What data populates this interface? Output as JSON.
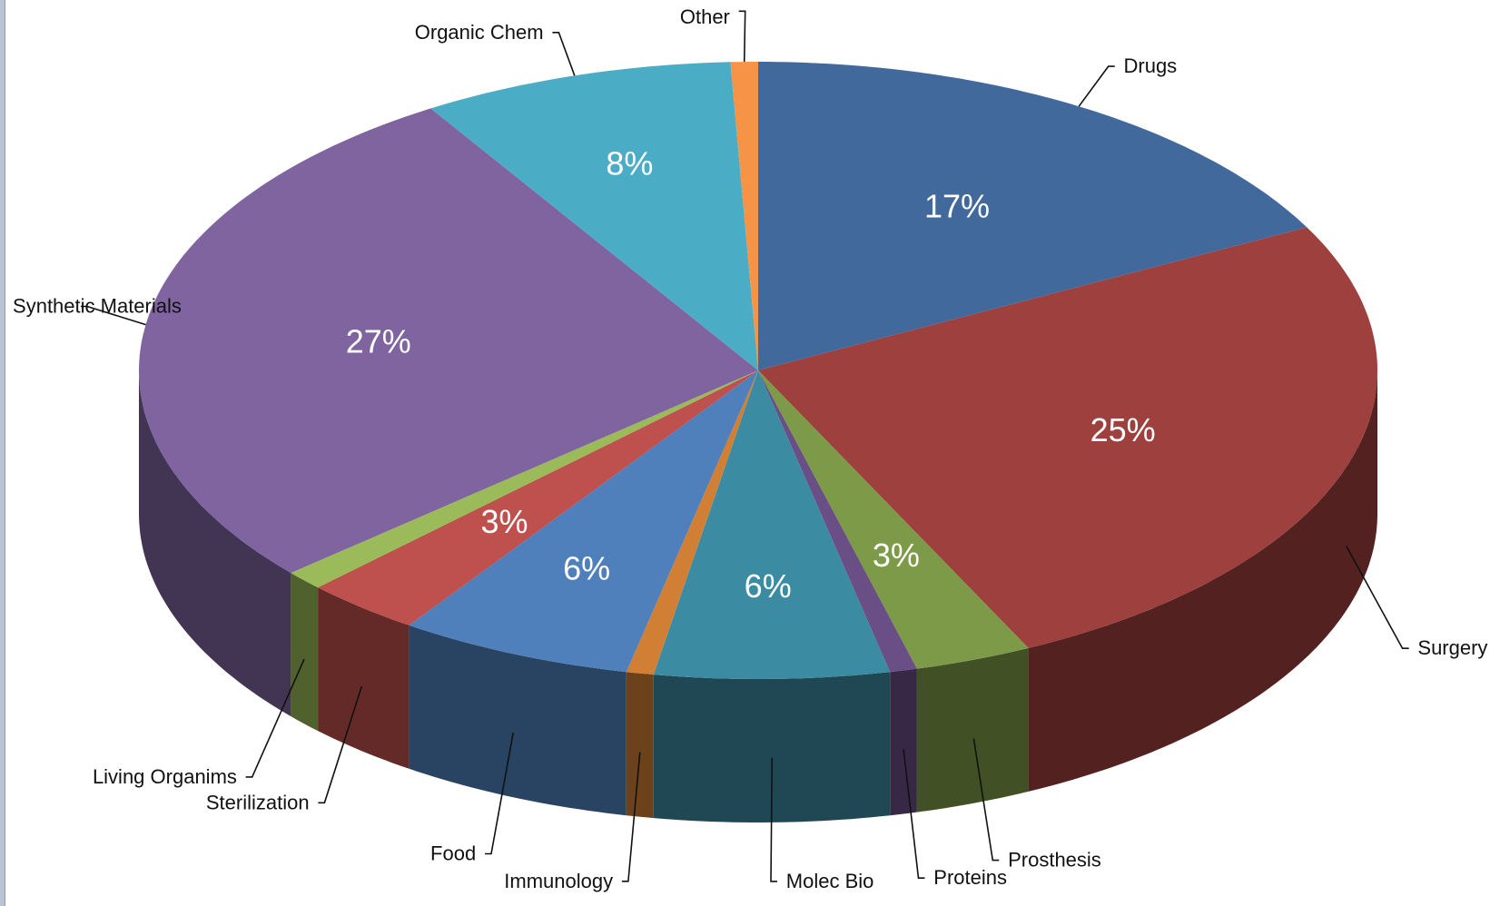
{
  "chart_data": {
    "type": "pie",
    "style": "3d",
    "title": "",
    "slices": [
      {
        "name": "Drugs",
        "value": 17,
        "pct_label": "17%",
        "color": "#41699b"
      },
      {
        "name": "Surgery",
        "value": 25,
        "pct_label": "25%",
        "color": "#9e403e"
      },
      {
        "name": "Prosthesis",
        "value": 3,
        "pct_label": "3%",
        "color": "#7d9a48"
      },
      {
        "name": "Proteins",
        "value": 0.7,
        "pct_label": "",
        "color": "#6a4f86"
      },
      {
        "name": "Molec Bio",
        "value": 6,
        "pct_label": "6%",
        "color": "#3b8ba2"
      },
      {
        "name": "Immunology",
        "value": 0.7,
        "pct_label": "",
        "color": "#d07f34"
      },
      {
        "name": "Food",
        "value": 6,
        "pct_label": "6%",
        "color": "#4f80bc"
      },
      {
        "name": "Sterilization",
        "value": 3,
        "pct_label": "3%",
        "color": "#be504d"
      },
      {
        "name": "Living Organims",
        "value": 1,
        "pct_label": "",
        "color": "#9bba59"
      },
      {
        "name": "Synthetic Materials",
        "value": 27,
        "pct_label": "27%",
        "color": "#7f64a0"
      },
      {
        "name": "Organic Chem",
        "value": 8,
        "pct_label": "8%",
        "color": "#4bacc6"
      },
      {
        "name": "Other",
        "value": 0.7,
        "pct_label": "",
        "color": "#f59447"
      }
    ]
  }
}
